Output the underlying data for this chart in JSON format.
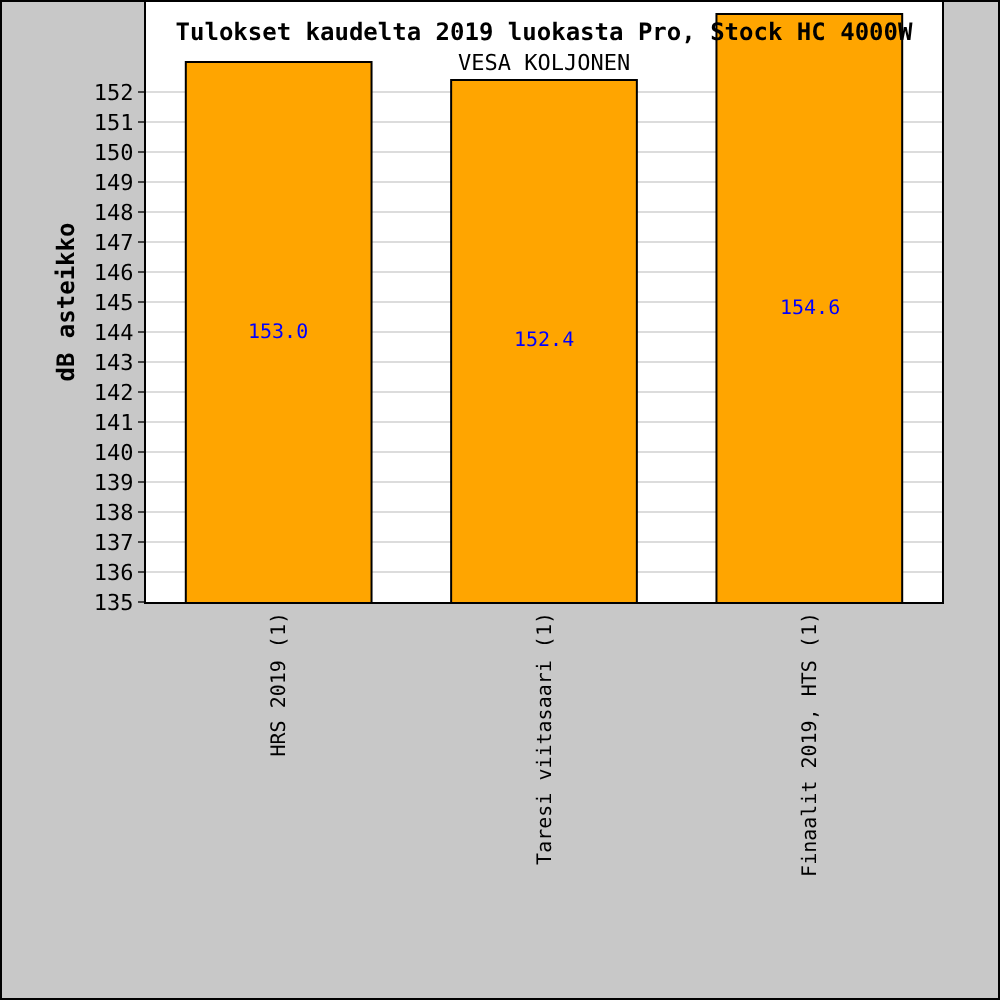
{
  "chart_data": {
    "type": "bar",
    "title": "Tulokset kaudelta 2019 luokasta Pro, Stock HC 4000W",
    "subtitle": "VESA KOLJONEN",
    "ylabel": "dB asteikko",
    "categories": [
      "HRS 2019 (1)",
      "Taresi viitasaari (1)",
      "Finaalit 2019, HTS (1)"
    ],
    "values": [
      153.0,
      152.4,
      154.6
    ],
    "value_labels": [
      "153.0",
      "152.4",
      "154.6"
    ],
    "color": "#ffa500",
    "ylim": [
      135,
      155
    ],
    "yticks": [
      135,
      136,
      137,
      138,
      139,
      140,
      141,
      142,
      143,
      144,
      145,
      146,
      147,
      148,
      149,
      150,
      151,
      152
    ],
    "grid": "y"
  }
}
